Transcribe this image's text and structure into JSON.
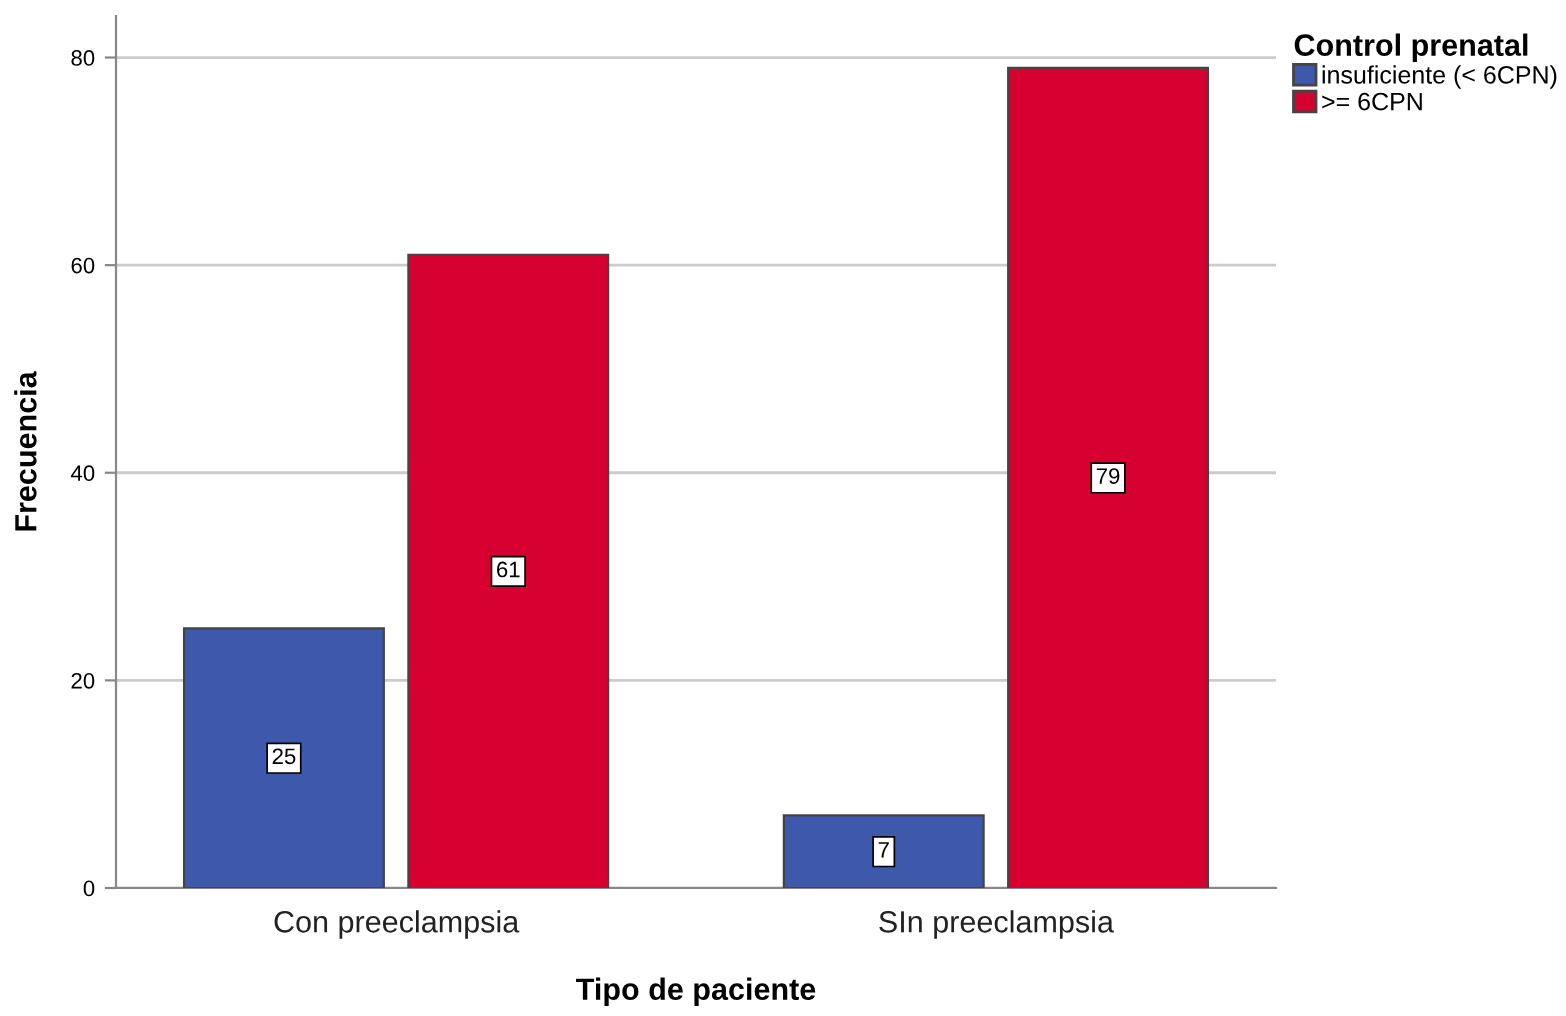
{
  "chart_data": {
    "type": "bar",
    "xlabel": "Tipo de paciente",
    "ylabel": "Frecuencia",
    "legend_title": "Control prenatal",
    "categories": [
      "Con preeclampsia",
      "SIn preeclampsia"
    ],
    "series": [
      {
        "name": "insuficiente (< 6CPN)",
        "color": "#3e58ac",
        "values": [
          25,
          7
        ]
      },
      {
        "name": ">= 6CPN",
        "color": "#d60031",
        "values": [
          61,
          79
        ]
      }
    ],
    "ylim": [
      0,
      84
    ],
    "yticks": [
      0,
      20,
      40,
      60,
      80
    ],
    "grid": "y",
    "legend": "top right",
    "data_labels": true
  }
}
